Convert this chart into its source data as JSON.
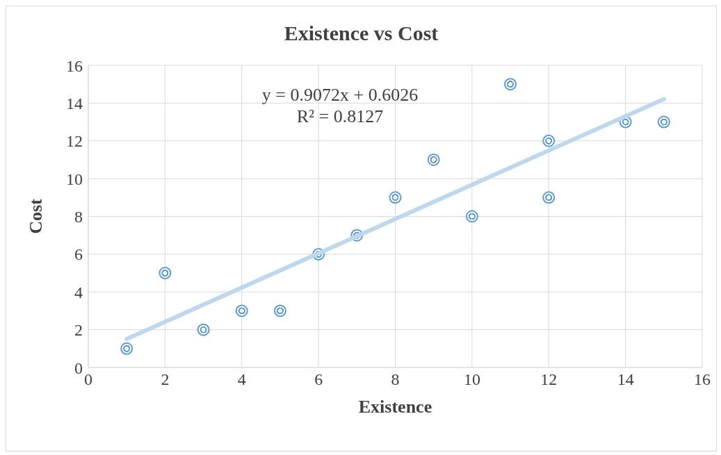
{
  "chart_data": {
    "type": "scatter",
    "title": "Existence vs Cost",
    "xlabel": "Existence",
    "ylabel": "Cost",
    "annotations": [
      "y = 0.9072x + 0.6026",
      "R² = 0.8127"
    ],
    "series": [
      {
        "color": "#5b9bd5",
        "x": [
          1,
          2,
          3,
          4,
          5,
          6,
          7,
          8,
          9,
          10,
          11,
          12,
          12,
          14,
          15
        ],
        "values": [
          1,
          5,
          2,
          3,
          3,
          6,
          7,
          9,
          11,
          8,
          15,
          12,
          9,
          13,
          13
        ],
        "marker": "circle"
      },
      {
        "type": "line",
        "color": "#bdd7ee",
        "x": [
          1,
          15
        ],
        "values": [
          1.51,
          14.21
        ],
        "line_style": "solid"
      }
    ],
    "xlim": [
      0,
      16
    ],
    "xticks": [
      0,
      2,
      4,
      6,
      8,
      10,
      12,
      14,
      16
    ],
    "ylim": [
      0,
      16
    ],
    "yticks": [
      0,
      2,
      4,
      6,
      8,
      10,
      12,
      14,
      16
    ],
    "grid": true,
    "legend": false
  }
}
